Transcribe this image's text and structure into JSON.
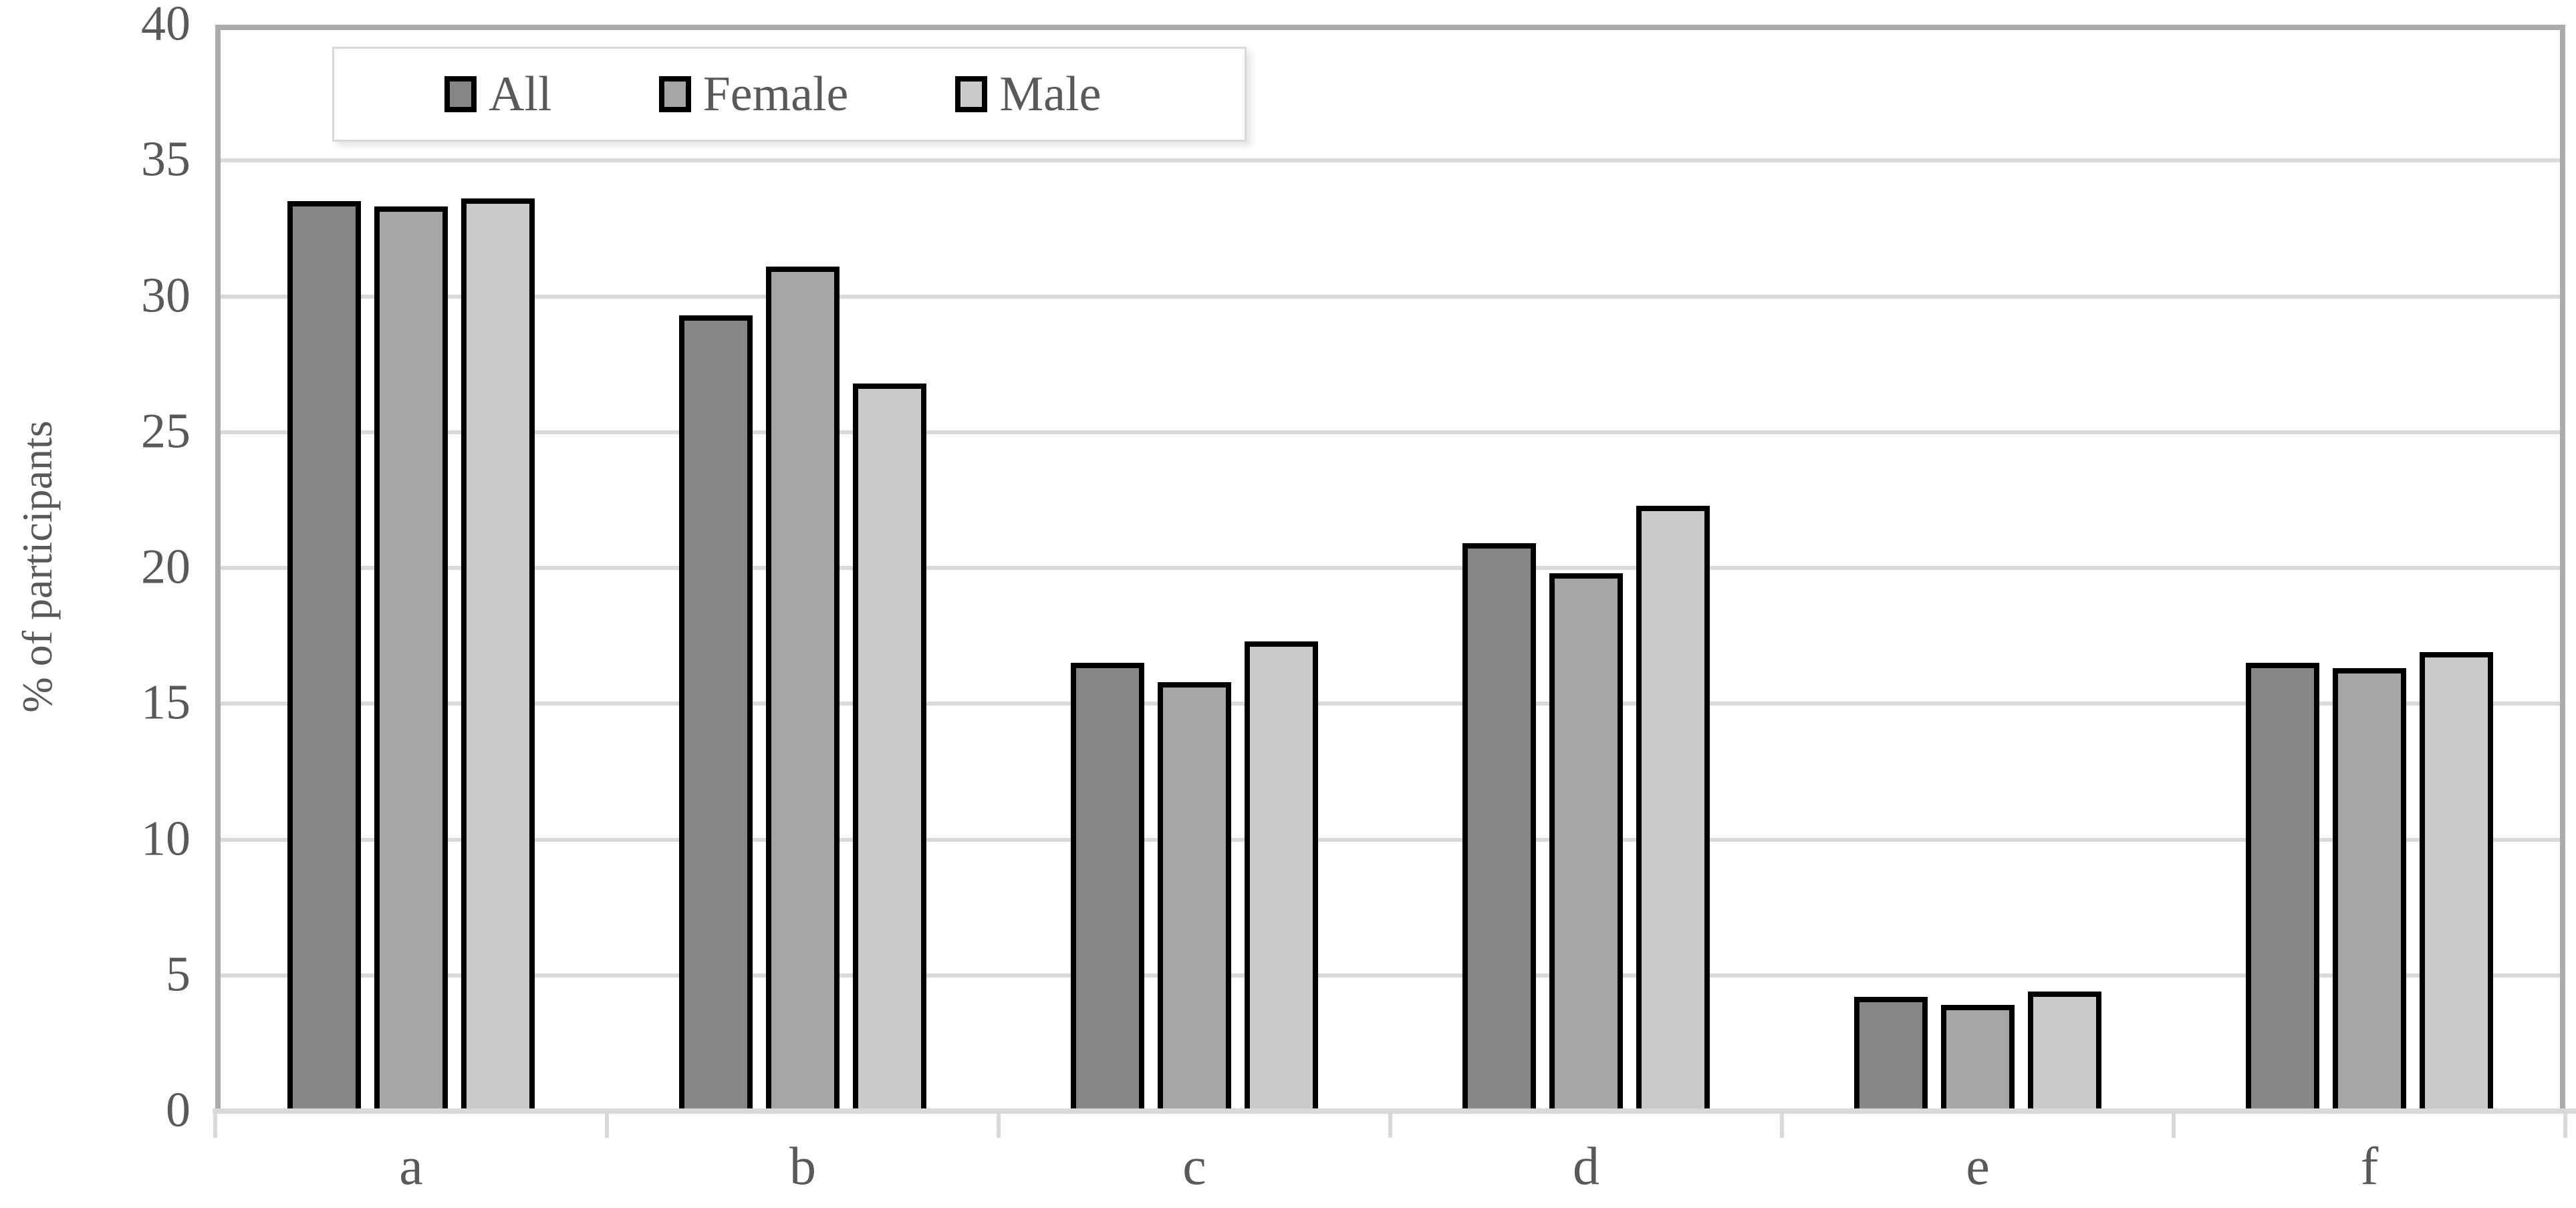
{
  "figure": {
    "kind": "grouped-bar-figure",
    "background": "#ffffff"
  },
  "chart_data": {
    "type": "bar",
    "categories": [
      "a",
      "b",
      "c",
      "d",
      "e",
      "f"
    ],
    "series": [
      {
        "name": "All",
        "color": "#868686",
        "values": [
          33.5,
          29.3,
          16.5,
          20.9,
          4.2,
          16.5
        ]
      },
      {
        "name": "Female",
        "color": "#a6a6a6",
        "values": [
          33.3,
          31.1,
          15.8,
          19.8,
          3.9,
          16.3
        ]
      },
      {
        "name": "Male",
        "color": "#cbcbcb",
        "values": [
          33.6,
          26.8,
          17.3,
          22.3,
          4.4,
          16.9
        ]
      }
    ],
    "title": "",
    "xlabel": "",
    "ylabel": "% of participants",
    "ylim": [
      0,
      40
    ],
    "yticks": [
      0,
      5,
      10,
      15,
      20,
      25,
      30,
      35,
      40
    ],
    "grid": "horizontal",
    "legend_position": "top-left-inside",
    "legend_labels": [
      "All",
      "Female",
      "Male"
    ]
  },
  "colors": {
    "plot_border": "#ababab",
    "gridline": "#d9d9d9",
    "axis_line": "#d9d9d9",
    "bar_border": "#000000",
    "text": "#595959",
    "legend_border": "#d9d9d9",
    "background": "#ffffff"
  }
}
